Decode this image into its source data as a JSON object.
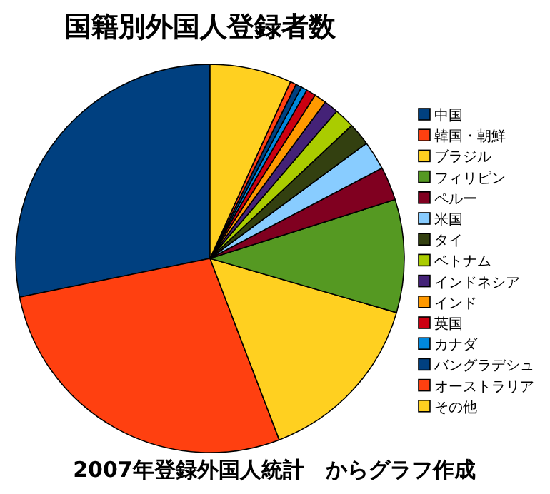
{
  "chart_data": {
    "type": "pie",
    "title": "国籍別外国人登録者数",
    "categories": [
      "中国",
      "韓国・朝鮮",
      "ブラジル",
      "フィリピン",
      "ペルー",
      "米国",
      "タイ",
      "ベトナム",
      "インドネシア",
      "インド",
      "英国",
      "カナダ",
      "バングラデシュ",
      "オーストラリア",
      "その他"
    ],
    "values": [
      28.2,
      27.6,
      14.7,
      9.4,
      2.8,
      2.4,
      1.9,
      1.7,
      1.2,
      1.0,
      0.8,
      0.5,
      0.5,
      0.5,
      6.8
    ],
    "colors": [
      "#004080",
      "#ff4010",
      "#ffd020",
      "#559922",
      "#800020",
      "#88ccff",
      "#334010",
      "#aacc00",
      "#442277",
      "#ff9900",
      "#cc0011",
      "#0088dd",
      "#004080",
      "#ff4010",
      "#ffd020"
    ],
    "legend": "right",
    "annotations": [
      "2007年登録外国人統計　からグラフ作成"
    ]
  }
}
